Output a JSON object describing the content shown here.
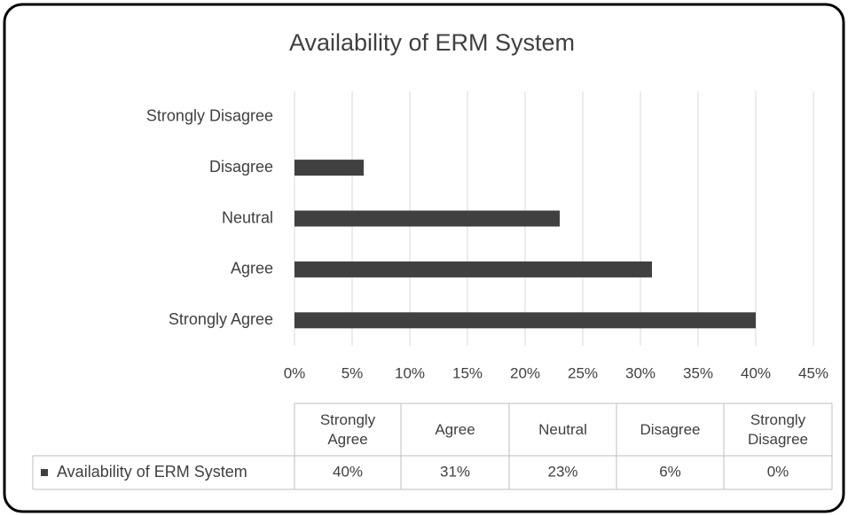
{
  "chart_data": {
    "type": "bar",
    "orientation": "horizontal",
    "title": "Availability of ERM System",
    "categories": [
      "Strongly Agree",
      "Agree",
      "Neutral",
      "Disagree",
      "Strongly Disagree"
    ],
    "series": [
      {
        "name": "Availability of ERM System",
        "color": "#404040",
        "values": [
          40,
          31,
          23,
          6,
          0
        ],
        "value_labels": [
          "40%",
          "31%",
          "23%",
          "6%",
          "0%"
        ]
      }
    ],
    "xlim": [
      0,
      45
    ],
    "xticks": [
      {
        "value": 0,
        "label": "0%"
      },
      {
        "value": 5,
        "label": "5%"
      },
      {
        "value": 10,
        "label": "10%"
      },
      {
        "value": 15,
        "label": "15%"
      },
      {
        "value": 20,
        "label": "20%"
      },
      {
        "value": 25,
        "label": "25%"
      },
      {
        "value": 30,
        "label": "30%"
      },
      {
        "value": 35,
        "label": "35%"
      },
      {
        "value": 40,
        "label": "40%"
      },
      {
        "value": 45,
        "label": "45%"
      }
    ],
    "grid": true,
    "data_table": true
  }
}
